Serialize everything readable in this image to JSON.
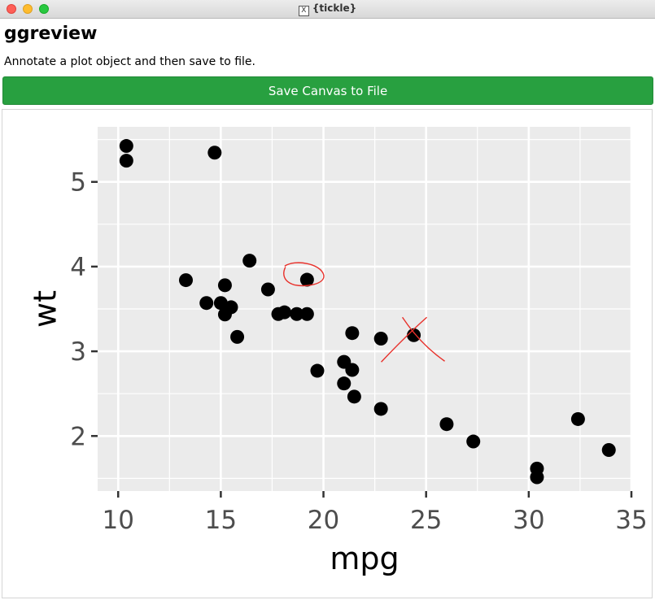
{
  "window": {
    "title": "{tickle}"
  },
  "app": {
    "title": "ggreview",
    "subtitle": "Annotate a plot object and then save to file.",
    "save_button_label": "Save Canvas to File"
  },
  "colors": {
    "button": "#28a040",
    "panel": "#ebebeb",
    "annotation": "#e8302a"
  },
  "chart_data": {
    "type": "scatter",
    "xlabel": "mpg",
    "ylabel": "wt",
    "xlim": [
      9,
      35
    ],
    "ylim": [
      1.35,
      5.65
    ],
    "x_ticks": [
      10,
      15,
      20,
      25,
      30,
      35
    ],
    "y_ticks": [
      2,
      3,
      4,
      5
    ],
    "x_tick_labels": [
      "10",
      "15",
      "20",
      "25",
      "30",
      "35"
    ],
    "y_tick_labels": [
      "2",
      "3",
      "4",
      "5"
    ],
    "grid": true,
    "points": [
      {
        "x": 21.0,
        "y": 2.62
      },
      {
        "x": 21.0,
        "y": 2.875
      },
      {
        "x": 22.8,
        "y": 2.32
      },
      {
        "x": 21.4,
        "y": 3.215
      },
      {
        "x": 18.7,
        "y": 3.44
      },
      {
        "x": 18.1,
        "y": 3.46
      },
      {
        "x": 14.3,
        "y": 3.57
      },
      {
        "x": 24.4,
        "y": 3.19
      },
      {
        "x": 22.8,
        "y": 3.15
      },
      {
        "x": 19.2,
        "y": 3.44
      },
      {
        "x": 17.8,
        "y": 3.44
      },
      {
        "x": 16.4,
        "y": 4.07
      },
      {
        "x": 17.3,
        "y": 3.73
      },
      {
        "x": 15.2,
        "y": 3.78
      },
      {
        "x": 10.4,
        "y": 5.25
      },
      {
        "x": 10.4,
        "y": 5.424
      },
      {
        "x": 14.7,
        "y": 5.345
      },
      {
        "x": 32.4,
        "y": 2.2
      },
      {
        "x": 30.4,
        "y": 1.615
      },
      {
        "x": 33.9,
        "y": 1.835
      },
      {
        "x": 21.5,
        "y": 2.465
      },
      {
        "x": 15.5,
        "y": 3.52
      },
      {
        "x": 15.2,
        "y": 3.435
      },
      {
        "x": 13.3,
        "y": 3.84
      },
      {
        "x": 19.2,
        "y": 3.845
      },
      {
        "x": 27.3,
        "y": 1.935
      },
      {
        "x": 26.0,
        "y": 2.14
      },
      {
        "x": 30.4,
        "y": 1.513
      },
      {
        "x": 15.8,
        "y": 3.17
      },
      {
        "x": 19.7,
        "y": 2.77
      },
      {
        "x": 15.0,
        "y": 3.57
      },
      {
        "x": 21.4,
        "y": 2.78
      }
    ],
    "annotations": [
      {
        "type": "circle",
        "x": 19.1,
        "y": 3.88
      },
      {
        "type": "cross",
        "x": 24.4,
        "y": 3.2
      }
    ]
  }
}
